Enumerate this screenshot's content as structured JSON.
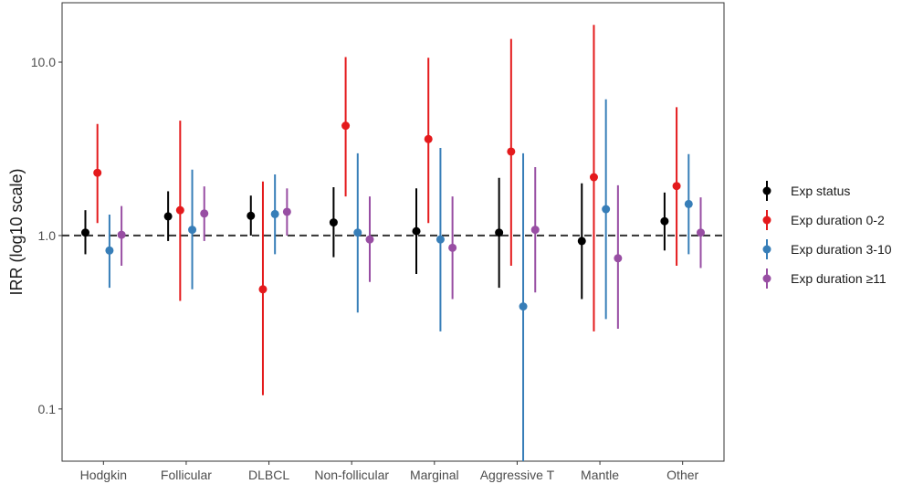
{
  "chart_data": {
    "type": "scatter",
    "subtype": "forest-plot-point-range",
    "title": "",
    "xlabel": "",
    "ylabel": "IRR (log10 scale)",
    "y_scale": "log10",
    "ylim": [
      0.05,
      22
    ],
    "y_ticks": [
      0.1,
      1.0,
      10.0
    ],
    "y_tick_labels": [
      "0.1",
      "1.0",
      "10.0"
    ],
    "reference_line": {
      "y": 1.0,
      "style": "dashed"
    },
    "grid": false,
    "legend_position": "right",
    "categories": [
      "Hodgkin",
      "Follicular",
      "DLBCL",
      "Non-follicular",
      "Marginal",
      "Aggressive T",
      "Mantle",
      "Other"
    ],
    "series": [
      {
        "name": "Exp status",
        "color": "#000000",
        "estimates": [
          1.04,
          1.29,
          1.3,
          1.19,
          1.06,
          1.04,
          0.93,
          1.21
        ],
        "lower": [
          0.78,
          0.93,
          1.0,
          0.75,
          0.6,
          0.5,
          0.43,
          0.82
        ],
        "upper": [
          1.4,
          1.8,
          1.7,
          1.9,
          1.87,
          2.15,
          2.0,
          1.77
        ]
      },
      {
        "name": "Exp duration 0-2",
        "color": "#e41a1c",
        "estimates": [
          2.3,
          1.4,
          0.49,
          4.3,
          3.6,
          3.05,
          2.17,
          1.93
        ],
        "lower": [
          1.18,
          0.42,
          0.12,
          1.68,
          1.18,
          0.67,
          0.28,
          0.67
        ],
        "upper": [
          4.4,
          4.6,
          2.05,
          10.7,
          10.6,
          13.6,
          16.4,
          5.5
        ]
      },
      {
        "name": "Exp duration 3-10",
        "color": "#377eb8",
        "estimates": [
          0.82,
          1.08,
          1.33,
          1.04,
          0.95,
          0.39,
          1.42,
          1.52
        ],
        "lower": [
          0.5,
          0.49,
          0.78,
          0.36,
          0.28,
          0.05,
          0.33,
          0.78
        ],
        "upper": [
          1.32,
          2.4,
          2.25,
          2.98,
          3.2,
          2.98,
          6.1,
          2.95
        ]
      },
      {
        "name": "Exp duration ≥11",
        "color": "#984ea3",
        "estimates": [
          1.01,
          1.34,
          1.37,
          0.95,
          0.85,
          1.08,
          0.74,
          1.04
        ],
        "lower": [
          0.67,
          0.93,
          1.0,
          0.54,
          0.43,
          0.47,
          0.29,
          0.65
        ],
        "upper": [
          1.48,
          1.92,
          1.87,
          1.68,
          1.68,
          2.48,
          1.95,
          1.66
        ]
      }
    ]
  }
}
